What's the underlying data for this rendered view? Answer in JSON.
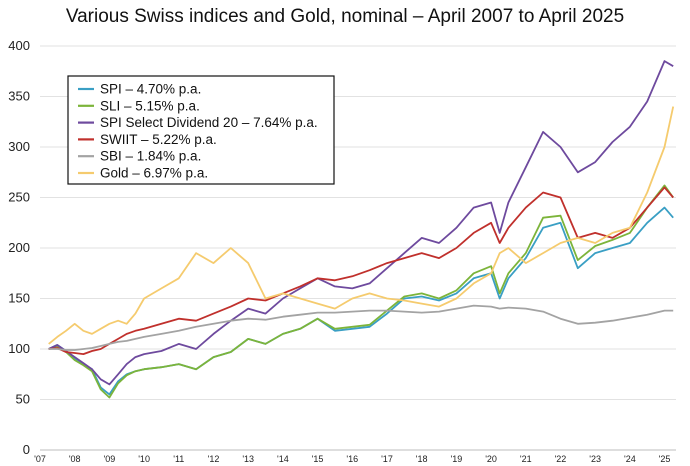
{
  "chart_data": {
    "type": "line",
    "title": "Various Swiss indices and Gold, nominal – April 2007 to April 2025",
    "xlabel": "",
    "ylabel": "",
    "xlim": [
      2007.0,
      2025.33
    ],
    "ylim": [
      0,
      400
    ],
    "yticks": [
      0,
      50,
      100,
      150,
      200,
      250,
      300,
      350,
      400
    ],
    "xticks": [
      "'07",
      "'08",
      "'09",
      "'10",
      "'11",
      "'12",
      "'13",
      "'14",
      "'15",
      "'16",
      "'17",
      "'18",
      "'19",
      "'20",
      "'21",
      "'22",
      "'23",
      "'24",
      "'25"
    ],
    "grid": "horizontal",
    "legend_position": "top-left",
    "x": [
      2007.25,
      2007.5,
      2007.75,
      2008.0,
      2008.25,
      2008.5,
      2008.75,
      2009.0,
      2009.25,
      2009.5,
      2009.75,
      2010.0,
      2010.5,
      2011.0,
      2011.5,
      2012.0,
      2012.5,
      2013.0,
      2013.5,
      2014.0,
      2014.5,
      2015.0,
      2015.5,
      2016.0,
      2016.5,
      2017.0,
      2017.5,
      2018.0,
      2018.5,
      2019.0,
      2019.5,
      2020.0,
      2020.25,
      2020.5,
      2021.0,
      2021.5,
      2022.0,
      2022.5,
      2023.0,
      2023.5,
      2024.0,
      2024.5,
      2025.0,
      2025.25
    ],
    "series": [
      {
        "name": "SPI – 4.70% p.a.",
        "color": "#3a9fc4",
        "values": [
          100,
          104,
          98,
          90,
          85,
          80,
          62,
          55,
          68,
          75,
          78,
          80,
          82,
          85,
          80,
          92,
          97,
          110,
          105,
          115,
          120,
          130,
          118,
          120,
          122,
          135,
          150,
          152,
          148,
          155,
          170,
          175,
          150,
          170,
          190,
          220,
          225,
          180,
          195,
          200,
          205,
          225,
          240,
          230
        ]
      },
      {
        "name": "SLI – 5.15% p.a.",
        "color": "#7cb43a",
        "values": [
          100,
          103,
          97,
          89,
          84,
          78,
          60,
          52,
          66,
          74,
          78,
          80,
          82,
          85,
          80,
          92,
          97,
          110,
          105,
          115,
          120,
          130,
          120,
          122,
          124,
          138,
          152,
          155,
          150,
          158,
          175,
          182,
          155,
          175,
          195,
          230,
          232,
          188,
          202,
          208,
          215,
          240,
          262,
          250
        ]
      },
      {
        "name": "SPI Select Dividend 20 – 7.64% p.a.",
        "color": "#6e4a9e",
        "values": [
          100,
          104,
          98,
          92,
          86,
          80,
          70,
          65,
          75,
          85,
          92,
          95,
          98,
          105,
          100,
          115,
          128,
          140,
          135,
          150,
          160,
          170,
          162,
          160,
          165,
          180,
          195,
          210,
          205,
          220,
          240,
          245,
          215,
          245,
          280,
          315,
          300,
          275,
          285,
          305,
          320,
          345,
          385,
          380
        ]
      },
      {
        "name": "SWIIT – 5.22% p.a.",
        "color": "#c0302c",
        "values": [
          100,
          101,
          97,
          96,
          95,
          98,
          100,
          105,
          110,
          115,
          118,
          120,
          125,
          130,
          128,
          135,
          142,
          150,
          148,
          155,
          162,
          170,
          168,
          172,
          178,
          185,
          190,
          195,
          190,
          200,
          215,
          225,
          205,
          220,
          240,
          255,
          250,
          210,
          215,
          210,
          220,
          240,
          260,
          250
        ]
      },
      {
        "name": "SBI – 1.84% p.a.",
        "color": "#a3a3a3",
        "values": [
          100,
          100,
          99,
          99,
          100,
          101,
          103,
          105,
          107,
          108,
          110,
          112,
          115,
          118,
          122,
          125,
          128,
          130,
          129,
          132,
          134,
          136,
          136,
          137,
          138,
          138,
          137,
          136,
          137,
          140,
          143,
          142,
          140,
          141,
          140,
          137,
          130,
          125,
          126,
          128,
          131,
          134,
          138,
          138
        ]
      },
      {
        "name": "Gold – 6.97% p.a.",
        "color": "#f5cb6e",
        "values": [
          105,
          112,
          118,
          125,
          118,
          115,
          120,
          125,
          128,
          125,
          135,
          150,
          160,
          170,
          195,
          185,
          200,
          185,
          150,
          155,
          150,
          145,
          140,
          150,
          155,
          150,
          148,
          145,
          142,
          150,
          165,
          175,
          195,
          200,
          185,
          195,
          205,
          210,
          205,
          215,
          220,
          255,
          300,
          340
        ]
      }
    ]
  }
}
